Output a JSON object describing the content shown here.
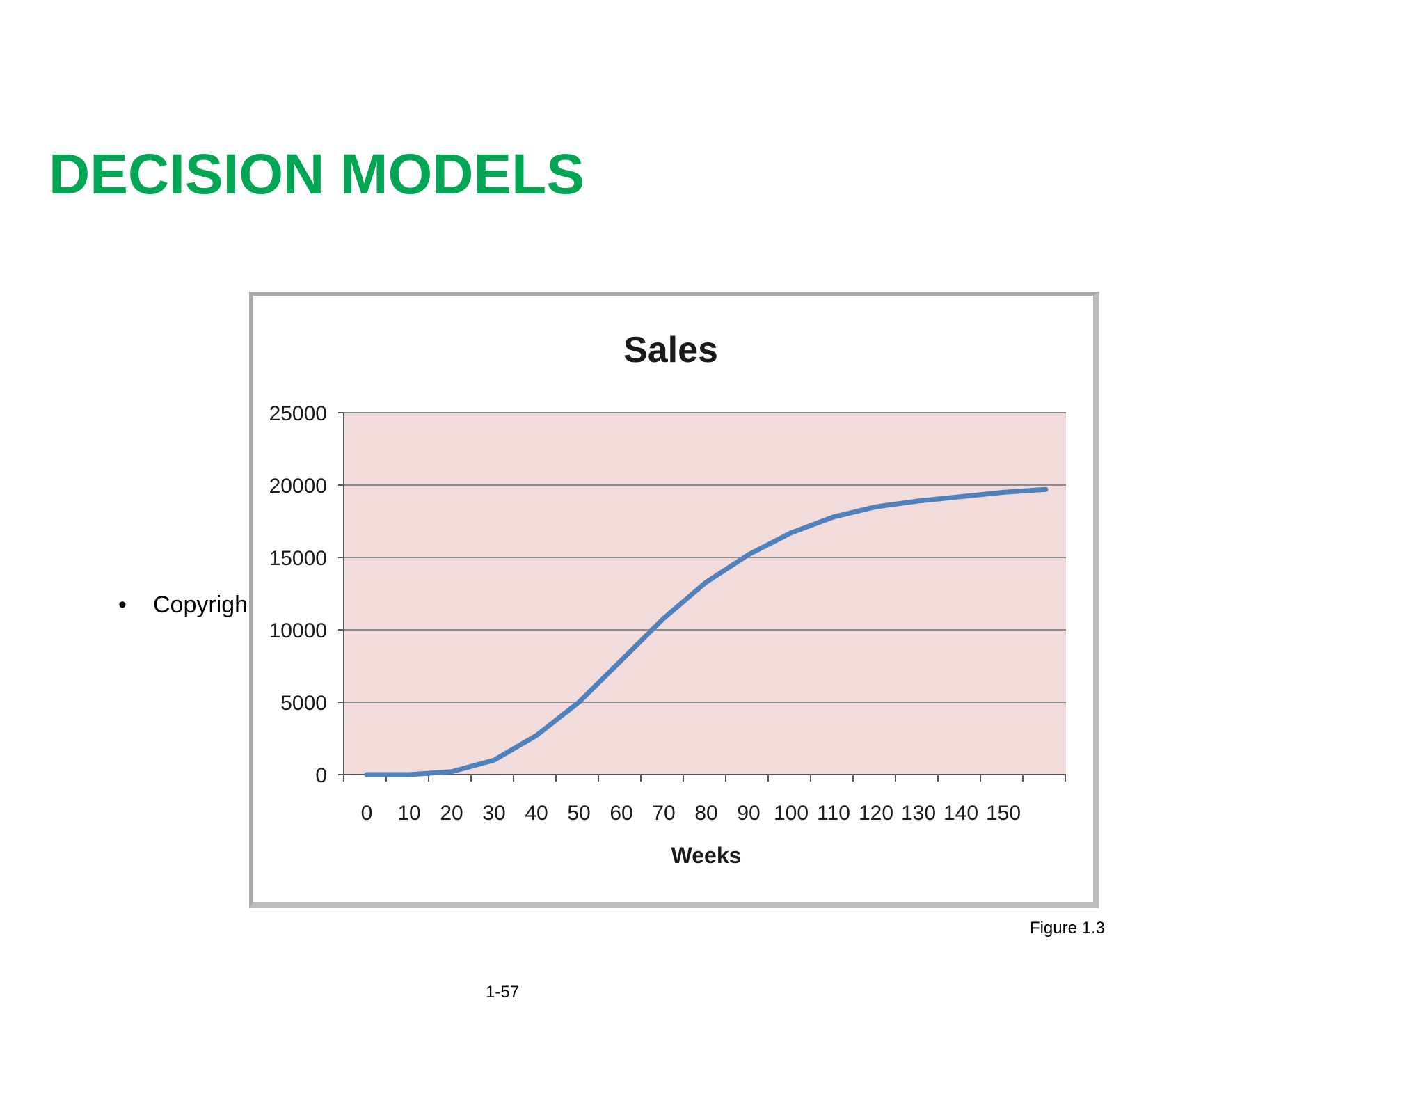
{
  "slide": {
    "title": "DECISION MODELS",
    "bullet_text": "Copyrigh",
    "figure_caption": "Figure 1.3",
    "page_number": "1-57"
  },
  "chart_data": {
    "type": "line",
    "title": "Sales",
    "xlabel": "Weeks",
    "ylabel": "",
    "x_tick_labels": [
      "0",
      "10",
      "20",
      "30",
      "40",
      "50",
      "60",
      "70",
      "80",
      "90",
      "100",
      "110",
      "120",
      "130",
      "140",
      "150"
    ],
    "y_tick_labels": [
      "0",
      "5000",
      "10000",
      "15000",
      "20000",
      "25000"
    ],
    "ylim": [
      0,
      25000
    ],
    "grid": true,
    "legend": "none",
    "colors": {
      "plot_background": "#f2dcdb",
      "line": "#4f81bd",
      "gridline": "#8c8c8c"
    },
    "series": [
      {
        "x": [
          0,
          10,
          20,
          30,
          40,
          50,
          60,
          70,
          80,
          90,
          100,
          110,
          120,
          130,
          140,
          150,
          160
        ],
        "values": [
          0,
          0,
          200,
          1000,
          2700,
          5000,
          7900,
          10800,
          13300,
          15200,
          16700,
          17800,
          18500,
          18900,
          19200,
          19500,
          19700
        ]
      }
    ]
  }
}
